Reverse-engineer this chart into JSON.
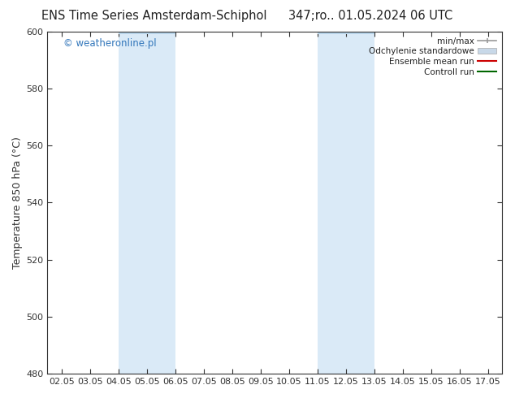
{
  "title_left": "ENS Time Series Amsterdam-Schiphol",
  "title_right": "347;ro.. 01.05.2024 06 UTC",
  "ylabel": "Temperature 850 hPa (°C)",
  "xlim": [
    1.5,
    17.5
  ],
  "ylim": [
    480,
    600
  ],
  "yticks": [
    480,
    500,
    520,
    540,
    560,
    580,
    600
  ],
  "xtick_labels": [
    "02.05",
    "03.05",
    "04.05",
    "05.05",
    "06.05",
    "07.05",
    "08.05",
    "09.05",
    "10.05",
    "11.05",
    "12.05",
    "13.05",
    "14.05",
    "15.05",
    "16.05",
    "17.05"
  ],
  "xtick_positions": [
    2,
    3,
    4,
    5,
    6,
    7,
    8,
    9,
    10,
    11,
    12,
    13,
    14,
    15,
    16,
    17
  ],
  "shaded_regions": [
    {
      "xmin": 4.0,
      "xmax": 6.0,
      "color": "#daeaf7"
    },
    {
      "xmin": 11.0,
      "xmax": 13.0,
      "color": "#daeaf7"
    }
  ],
  "shaded_top_bars": [
    {
      "xmin": 4.0,
      "xmax": 6.0,
      "color": "#b8d4ea"
    },
    {
      "xmin": 11.0,
      "xmax": 13.0,
      "color": "#b8d4ea"
    }
  ],
  "watermark_text": "© weatheronline.pl",
  "watermark_color": "#3377bb",
  "legend_items": [
    {
      "label": "min/max",
      "color": "#999999",
      "lw": 1.2,
      "style": "minmax"
    },
    {
      "label": "Odchylenie standardowe",
      "color": "#c8d8e8",
      "lw": 8,
      "style": "band"
    },
    {
      "label": "Ensemble mean run",
      "color": "#cc0000",
      "lw": 1.5,
      "style": "line"
    },
    {
      "label": "Controll run",
      "color": "#006600",
      "lw": 1.5,
      "style": "line"
    }
  ],
  "background_color": "#ffffff",
  "spine_color": "#333333",
  "tick_color": "#333333",
  "title_fontsize": 10.5,
  "label_fontsize": 9,
  "tick_fontsize": 8
}
